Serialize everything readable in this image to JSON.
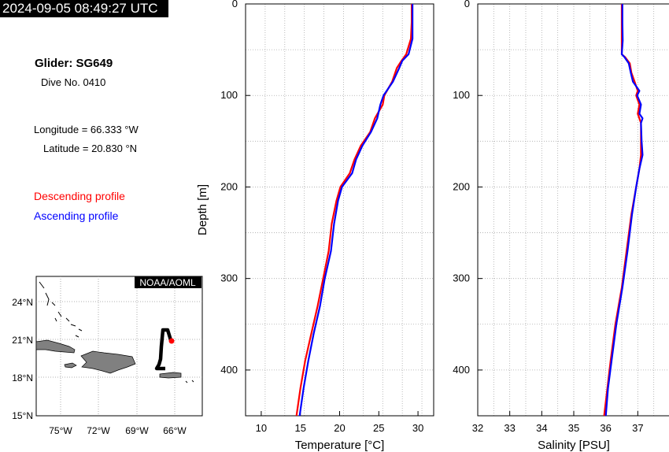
{
  "header": {
    "timestamp": "2024-09-05 08:49:27 UTC"
  },
  "info": {
    "glider": "Glider: SG649",
    "dive": "Dive No. 0410",
    "longitude": "Longitude = 66.333 °W",
    "latitude": "Latitude = 20.830 °N"
  },
  "legend": {
    "descending": "Descending profile",
    "ascending": "Ascending profile",
    "descending_color": "#ff0000",
    "ascending_color": "#0000ff"
  },
  "map": {
    "credit": "NOAA/AOML",
    "lat_labels": [
      "24°N",
      "21°N",
      "18°N",
      "15°N"
    ],
    "lon_labels": [
      "75°W",
      "72°W",
      "69°W",
      "66°W"
    ],
    "track_color": "#000000",
    "position_color": "#ff0000",
    "land_color": "#808080"
  },
  "chart_data": [
    {
      "type": "line",
      "xlabel": "Temperature [°C]",
      "ylabel": "Depth [m]",
      "xlim": [
        8,
        32
      ],
      "ylim": [
        450,
        0
      ],
      "x_ticks": [
        10,
        15,
        20,
        25,
        30
      ],
      "y_ticks": [
        0,
        100,
        200,
        300,
        400
      ],
      "grid": true,
      "series": [
        {
          "name": "Descending profile",
          "color": "#ff0000",
          "depth": [
            0,
            20,
            38,
            55,
            62,
            70,
            85,
            100,
            110,
            125,
            140,
            155,
            170,
            185,
            200,
            215,
            240,
            270,
            300,
            330,
            360,
            390,
            420,
            450
          ],
          "values": [
            29.2,
            29.2,
            29.1,
            28.5,
            27.9,
            27.3,
            26.7,
            25.7,
            25.5,
            24.5,
            23.9,
            22.7,
            21.9,
            21.3,
            20.1,
            19.6,
            19.0,
            18.6,
            17.9,
            17.2,
            16.4,
            15.6,
            15.0,
            14.5
          ]
        },
        {
          "name": "Ascending profile",
          "color": "#0000ff",
          "depth": [
            0,
            20,
            38,
            55,
            62,
            70,
            85,
            100,
            110,
            125,
            140,
            155,
            170,
            185,
            200,
            215,
            240,
            270,
            300,
            330,
            360,
            390,
            420,
            450
          ],
          "values": [
            29.3,
            29.3,
            29.3,
            28.8,
            28.0,
            27.6,
            26.8,
            25.6,
            25.2,
            24.8,
            24.0,
            22.9,
            22.1,
            21.6,
            20.3,
            19.8,
            19.3,
            18.9,
            18.1,
            17.5,
            16.7,
            16.0,
            15.4,
            14.9
          ]
        }
      ]
    },
    {
      "type": "line",
      "xlabel": "Salinity [PSU]",
      "ylabel": "",
      "xlim": [
        32,
        38
      ],
      "ylim": [
        450,
        0
      ],
      "x_ticks": [
        32,
        33,
        34,
        35,
        36,
        37
      ],
      "y_ticks": [
        0,
        100,
        200,
        300,
        400
      ],
      "grid": true,
      "series": [
        {
          "name": "Descending profile",
          "color": "#ff0000",
          "depth": [
            0,
            20,
            40,
            55,
            58,
            65,
            75,
            85,
            95,
            100,
            110,
            120,
            130,
            150,
            165,
            180,
            200,
            230,
            270,
            310,
            350,
            390,
            420,
            450
          ],
          "values": [
            36.5,
            36.5,
            36.5,
            36.5,
            36.6,
            36.75,
            36.8,
            36.9,
            37.0,
            36.95,
            37.05,
            37.0,
            37.1,
            37.1,
            37.1,
            37.05,
            36.95,
            36.8,
            36.65,
            36.5,
            36.3,
            36.15,
            36.05,
            35.95
          ]
        },
        {
          "name": "Ascending profile",
          "color": "#0000ff",
          "depth": [
            0,
            20,
            40,
            55,
            58,
            65,
            75,
            85,
            95,
            100,
            110,
            120,
            125,
            130,
            150,
            165,
            180,
            200,
            230,
            270,
            310,
            350,
            390,
            420,
            450
          ],
          "values": [
            36.52,
            36.52,
            36.53,
            36.5,
            36.58,
            36.72,
            36.78,
            36.85,
            37.05,
            36.98,
            37.1,
            37.05,
            37.15,
            37.1,
            37.12,
            37.15,
            37.05,
            36.95,
            36.82,
            36.68,
            36.52,
            36.33,
            36.18,
            36.07,
            36.0
          ]
        }
      ]
    }
  ]
}
